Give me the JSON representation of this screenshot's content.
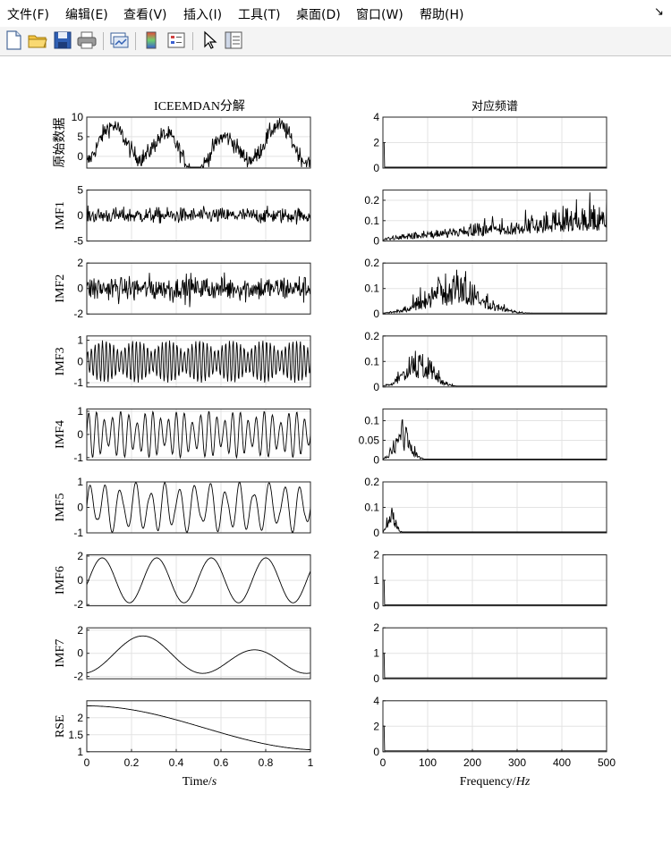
{
  "menu": {
    "items": [
      "文件(F)",
      "编辑(E)",
      "查看(V)",
      "插入(I)",
      "工具(T)",
      "桌面(D)",
      "窗口(W)",
      "帮助(H)"
    ],
    "dock_glyph": "↘"
  },
  "toolbar": {
    "icons": [
      "new-figure-icon",
      "open-file-icon",
      "save-icon",
      "print-icon",
      "link-plot-icon",
      "insert-colorbar-icon",
      "insert-legend-icon",
      "edit-plot-cursor-icon",
      "property-inspector-icon"
    ]
  },
  "figure": {
    "left_title": "ICEEMDAN分解",
    "right_title": "对应频谱",
    "left_xlabel": {
      "text": "Time/",
      "italic": "s"
    },
    "right_xlabel": {
      "text": "Frequency/",
      "italic": "Hz"
    }
  },
  "chart_data": [
    {
      "type": "line",
      "panel": "left",
      "ylabel": "原始数据",
      "x": [
        0,
        1
      ],
      "yticks": [
        0,
        5,
        10
      ],
      "ylim": [
        -3,
        10
      ],
      "signal": "noisy-raw",
      "grid": true
    },
    {
      "type": "line",
      "panel": "left",
      "ylabel": "IMF1",
      "x": [
        0,
        1
      ],
      "yticks": [
        -5,
        0,
        5
      ],
      "ylim": [
        -5,
        5
      ],
      "signal": "white-noise",
      "grid": true
    },
    {
      "type": "line",
      "panel": "left",
      "ylabel": "IMF2",
      "x": [
        0,
        1
      ],
      "yticks": [
        -2,
        0,
        2
      ],
      "ylim": [
        -2,
        2
      ],
      "signal": "bursts",
      "grid": true
    },
    {
      "type": "line",
      "panel": "left",
      "ylabel": "IMF3",
      "x": [
        0,
        1
      ],
      "yticks": [
        -1,
        0,
        1
      ],
      "ylim": [
        -1.2,
        1.2
      ],
      "signal": "oscillation",
      "grid": true
    },
    {
      "type": "line",
      "panel": "left",
      "ylabel": "IMF4",
      "x": [
        0,
        1
      ],
      "yticks": [
        -1,
        0,
        1
      ],
      "ylim": [
        -1.1,
        1.1
      ],
      "signal": "oscillation",
      "grid": true
    },
    {
      "type": "line",
      "panel": "left",
      "ylabel": "IMF5",
      "x": [
        0,
        1
      ],
      "yticks": [
        -1,
        0,
        1
      ],
      "ylim": [
        -1,
        1
      ],
      "signal": "oscillation",
      "grid": true
    },
    {
      "type": "line",
      "panel": "left",
      "ylabel": "IMF6",
      "x": [
        0,
        1
      ],
      "yticks": [
        -2,
        0,
        2
      ],
      "ylim": [
        -2.1,
        2.1
      ],
      "signal": "smooth",
      "grid": true
    },
    {
      "type": "line",
      "panel": "left",
      "ylabel": "IMF7",
      "x": [
        0,
        1
      ],
      "yticks": [
        -2,
        0,
        2
      ],
      "ylim": [
        -2.2,
        2.2
      ],
      "signal": "slow",
      "grid": true
    },
    {
      "type": "line",
      "panel": "left",
      "ylabel": "RSE",
      "x": [
        0,
        1
      ],
      "yticks": [
        1,
        1.5,
        2
      ],
      "ylim": [
        1,
        2.5
      ],
      "signal": "trend",
      "grid": true,
      "xticks": [
        "0",
        "0.2",
        "0.4",
        "0.6",
        "0.8",
        "1"
      ]
    },
    {
      "type": "line",
      "panel": "right",
      "x": [
        0,
        500
      ],
      "yticks": [
        "0",
        "2",
        "4"
      ],
      "ylim": [
        0,
        4
      ],
      "spectrum": "dc-spike",
      "grid": true
    },
    {
      "type": "line",
      "panel": "right",
      "x": [
        0,
        500
      ],
      "yticks": [
        "0",
        "0.1",
        "0.2"
      ],
      "ylim": [
        0,
        0.25
      ],
      "spectrum": "rising-high",
      "grid": true
    },
    {
      "type": "line",
      "panel": "right",
      "x": [
        0,
        500
      ],
      "yticks": [
        "0",
        "0.1",
        "0.2"
      ],
      "ylim": [
        0,
        0.2
      ],
      "spectrum": "band",
      "peak_hz": 160,
      "grid": true
    },
    {
      "type": "line",
      "panel": "right",
      "x": [
        0,
        500
      ],
      "yticks": [
        "0",
        "0.1",
        "0.2"
      ],
      "ylim": [
        0,
        0.2
      ],
      "spectrum": "band",
      "peak_hz": 80,
      "grid": true
    },
    {
      "type": "line",
      "panel": "right",
      "x": [
        0,
        500
      ],
      "yticks": [
        "0",
        "0.05",
        "0.1"
      ],
      "ylim": [
        0,
        0.13
      ],
      "spectrum": "band",
      "peak_hz": 45,
      "grid": true
    },
    {
      "type": "line",
      "panel": "right",
      "x": [
        0,
        500
      ],
      "yticks": [
        "0",
        "0.1",
        "0.2"
      ],
      "ylim": [
        0,
        0.2
      ],
      "spectrum": "band",
      "peak_hz": 20,
      "grid": true
    },
    {
      "type": "line",
      "panel": "right",
      "x": [
        0,
        500
      ],
      "yticks": [
        "0",
        "1",
        "2"
      ],
      "ylim": [
        0,
        2
      ],
      "spectrum": "dc-spike",
      "grid": true
    },
    {
      "type": "line",
      "panel": "right",
      "x": [
        0,
        500
      ],
      "yticks": [
        "0",
        "1",
        "2"
      ],
      "ylim": [
        0,
        2
      ],
      "spectrum": "dc-spike",
      "grid": true
    },
    {
      "type": "line",
      "panel": "right",
      "x": [
        0,
        500
      ],
      "yticks": [
        "0",
        "2",
        "4"
      ],
      "ylim": [
        0,
        4
      ],
      "spectrum": "dc-spike",
      "grid": true,
      "xticks": [
        "0",
        "100",
        "200",
        "300",
        "400",
        "500"
      ]
    }
  ]
}
